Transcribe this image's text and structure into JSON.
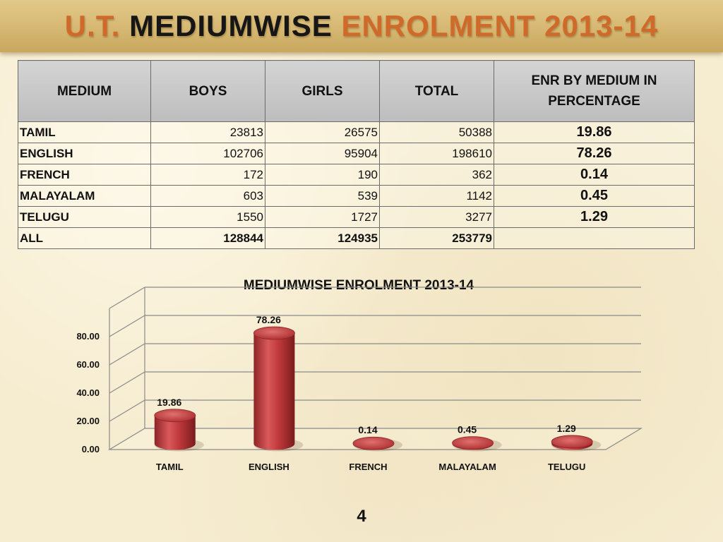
{
  "title": {
    "part1": "U.T. ",
    "part2": "MEDIUMWISE ",
    "part3": "ENROLMENT 2013-14"
  },
  "table": {
    "headers": [
      "MEDIUM",
      "BOYS",
      "GIRLS",
      "TOTAL",
      "ENR BY MEDIUM IN PERCENTAGE"
    ],
    "rows": [
      {
        "medium": "TAMIL",
        "boys": "23813",
        "girls": "26575",
        "total": "50388",
        "pct": "19.86"
      },
      {
        "medium": "ENGLISH",
        "boys": "102706",
        "girls": "95904",
        "total": "198610",
        "pct": "78.26"
      },
      {
        "medium": "FRENCH",
        "boys": "172",
        "girls": "190",
        "total": "362",
        "pct": "0.14"
      },
      {
        "medium": "MALAYALAM",
        "boys": "603",
        "girls": "539",
        "total": "1142",
        "pct": "0.45"
      },
      {
        "medium": "TELUGU",
        "boys": "1550",
        "girls": "1727",
        "total": "3277",
        "pct": "1.29"
      },
      {
        "medium": "ALL",
        "boys": "128844",
        "girls": "124935",
        "total": "253779",
        "pct": ""
      }
    ]
  },
  "chart_data": {
    "type": "bar",
    "title": "MEDIUMWISE ENROLMENT 2013-14",
    "categories": [
      "TAMIL",
      "ENGLISH",
      "FRENCH",
      "MALAYALAM",
      "TELUGU"
    ],
    "values": [
      19.86,
      78.26,
      0.14,
      0.45,
      1.29
    ],
    "value_labels": [
      "19.86",
      "78.26",
      "0.14",
      "0.45",
      "1.29"
    ],
    "yticks": [
      "0.00",
      "20.00",
      "40.00",
      "60.00",
      "80.00"
    ],
    "ylim": [
      0,
      100
    ],
    "grid": true,
    "legend": "none",
    "bar_color": "#c0393b"
  },
  "page_number": "4"
}
